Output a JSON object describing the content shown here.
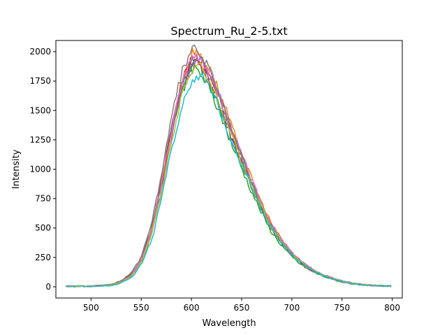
{
  "chart_data": {
    "type": "line",
    "title": "Spectrum_Ru_2-5.txt",
    "xlabel": "Wavelength",
    "ylabel": "Intensity",
    "xlim": [
      465,
      810
    ],
    "ylim": [
      -95,
      2095
    ],
    "xticks": [
      500,
      550,
      600,
      650,
      700,
      750,
      800
    ],
    "yticks": [
      0,
      250,
      500,
      750,
      1000,
      1250,
      1500,
      1750,
      2000
    ],
    "grid": false,
    "legend": "none",
    "x_range": [
      475,
      800
    ],
    "x_step": 2,
    "base_profile": {
      "x": [
        475,
        500,
        520,
        530,
        540,
        550,
        560,
        570,
        580,
        590,
        600,
        605,
        610,
        620,
        630,
        640,
        650,
        660,
        670,
        680,
        690,
        700,
        710,
        720,
        730,
        740,
        750,
        760,
        770,
        780,
        790,
        800
      ],
      "y": [
        5,
        5,
        15,
        45,
        100,
        230,
        470,
        860,
        1300,
        1680,
        1880,
        1900,
        1860,
        1710,
        1500,
        1270,
        1060,
        850,
        660,
        490,
        370,
        270,
        195,
        140,
        100,
        70,
        45,
        28,
        18,
        12,
        8,
        6
      ]
    },
    "series": [
      {
        "color": "#1f77b4",
        "peak": 1900,
        "shift": 0
      },
      {
        "color": "#ff7f0e",
        "peak": 2000,
        "shift": 1
      },
      {
        "color": "#2ca02c",
        "peak": 1850,
        "shift": -1
      },
      {
        "color": "#d62728",
        "peak": 1960,
        "shift": 0.5
      },
      {
        "color": "#9467bd",
        "peak": 1940,
        "shift": 1.5
      },
      {
        "color": "#8c564b",
        "peak": 1920,
        "shift": -0.5
      },
      {
        "color": "#e377c2",
        "peak": 1980,
        "shift": 0.8
      },
      {
        "color": "#7f7f7f",
        "peak": 2020,
        "shift": -0.8
      },
      {
        "color": "#bcbd22",
        "peak": 1880,
        "shift": 1.2
      },
      {
        "color": "#17becf",
        "peak": 1800,
        "shift": 2
      }
    ]
  }
}
